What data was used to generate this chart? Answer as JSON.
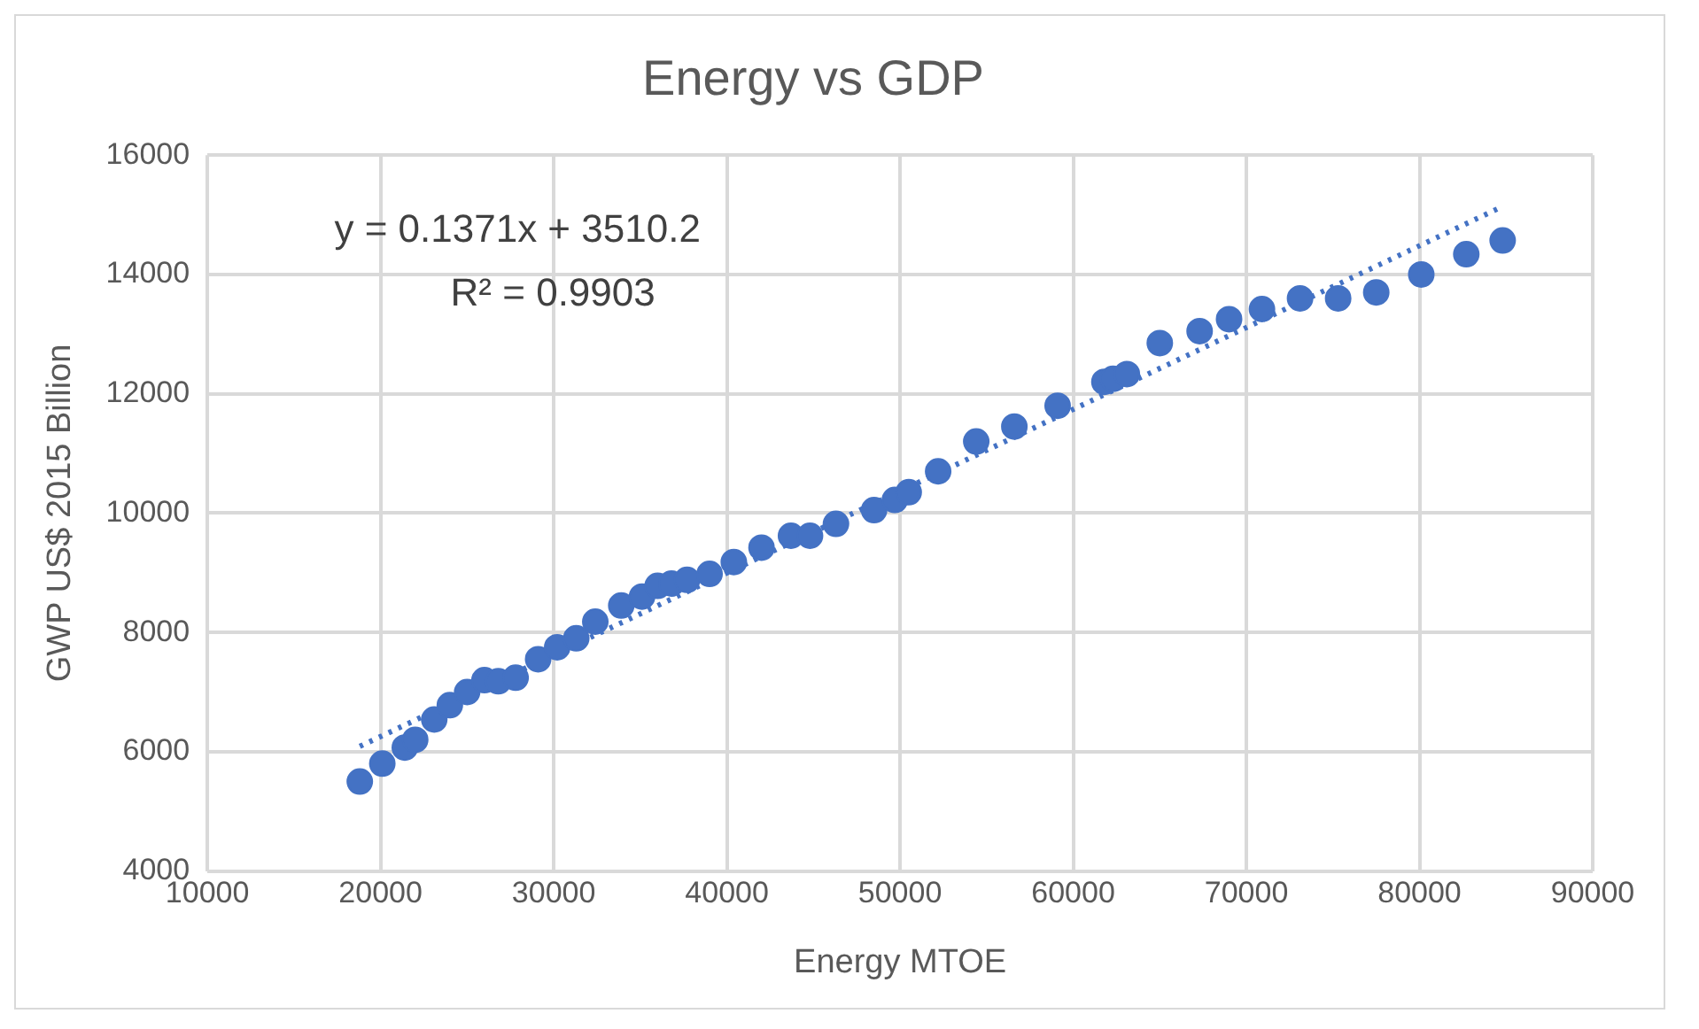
{
  "chart_data": {
    "type": "scatter",
    "title": "Energy vs GDP",
    "xlabel": "Energy MTOE",
    "ylabel": "GWP US$ 2015 Billion",
    "xlim": [
      10000,
      90000
    ],
    "xticks": [
      10000,
      20000,
      30000,
      40000,
      50000,
      60000,
      70000,
      80000,
      90000
    ],
    "ylim": [
      4000,
      16000
    ],
    "yticks": [
      4000,
      6000,
      8000,
      10000,
      12000,
      14000,
      16000
    ],
    "grid": true,
    "legend": false,
    "series": [
      {
        "type": "scatter",
        "color": "#4472c4",
        "marker": "circle",
        "x": [
          18800,
          20100,
          21400,
          22000,
          23100,
          24000,
          25000,
          26000,
          26800,
          27800,
          29100,
          30200,
          31300,
          32400,
          33900,
          35100,
          36000,
          36800,
          37700,
          39000,
          40400,
          42000,
          43700,
          44800,
          46300,
          48500,
          49700,
          50500,
          52200,
          54400,
          56600,
          59100,
          61800,
          62300,
          63100,
          65000,
          67300,
          69000,
          70900,
          73100,
          75300,
          77500,
          80100,
          82700,
          84800
        ],
        "values": [
          5500,
          5800,
          6070,
          6200,
          6540,
          6780,
          7000,
          7200,
          7180,
          7240,
          7550,
          7750,
          7900,
          8180,
          8450,
          8600,
          8780,
          8820,
          8880,
          8980,
          9180,
          9420,
          9620,
          9620,
          9820,
          10050,
          10220,
          10350,
          10700,
          11200,
          11450,
          11800,
          12200,
          12250,
          12330,
          12850,
          13050,
          13250,
          13420,
          13600,
          13600,
          13700,
          14000,
          14340,
          14570
        ]
      },
      {
        "type": "line",
        "color": "#4472c4",
        "line_style": "dotted",
        "marker": "none",
        "x": [
          18800,
          84800
        ],
        "values": [
          6090,
          15140
        ]
      }
    ],
    "annotations": [
      "y = 0.1371x + 3510.2",
      "R² = 0.9903"
    ]
  }
}
